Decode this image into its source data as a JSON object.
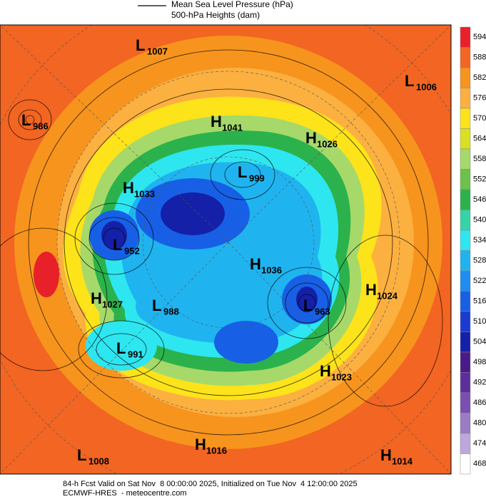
{
  "legend": {
    "line_label": "Mean Sea Level Pressure (hPa)",
    "fill_label": "500-hPa Heights (dam)"
  },
  "colorbar": [
    {
      "value": 594,
      "color": "#e8202a"
    },
    {
      "value": 588,
      "color": "#f26522"
    },
    {
      "value": 582,
      "color": "#f7941d"
    },
    {
      "value": 576,
      "color": "#fbb040"
    },
    {
      "value": 570,
      "color": "#fde31a"
    },
    {
      "value": 564,
      "color": "#d9e021"
    },
    {
      "value": 558,
      "color": "#a6d96a"
    },
    {
      "value": 552,
      "color": "#6cc24a"
    },
    {
      "value": 546,
      "color": "#2bb24c"
    },
    {
      "value": 540,
      "color": "#35d4a8"
    },
    {
      "value": 534,
      "color": "#2ee6f0"
    },
    {
      "value": 528,
      "color": "#1fb4f0"
    },
    {
      "value": 522,
      "color": "#1e8cf0"
    },
    {
      "value": 516,
      "color": "#1760e6"
    },
    {
      "value": 510,
      "color": "#1a3ad2"
    },
    {
      "value": 504,
      "color": "#1420a8"
    },
    {
      "value": 498,
      "color": "#4a1a8a"
    },
    {
      "value": 492,
      "color": "#5e2d9c"
    },
    {
      "value": 486,
      "color": "#7a4faf"
    },
    {
      "value": 480,
      "color": "#9a7cc4"
    },
    {
      "value": 474,
      "color": "#bda7dc"
    },
    {
      "value": 468,
      "color": "#ffffff"
    }
  ],
  "centers": [
    {
      "letter": "L",
      "value": 1007
    },
    {
      "letter": "L",
      "value": 1006
    },
    {
      "letter": "L",
      "value": 986
    },
    {
      "letter": "H",
      "value": 1041
    },
    {
      "letter": "H",
      "value": 1026
    },
    {
      "letter": "L",
      "value": 999
    },
    {
      "letter": "H",
      "value": 1033
    },
    {
      "letter": "L",
      "value": 952
    },
    {
      "letter": "H",
      "value": 1036
    },
    {
      "letter": "H",
      "value": 1027
    },
    {
      "letter": "L",
      "value": 988
    },
    {
      "letter": "L",
      "value": 963
    },
    {
      "letter": "H",
      "value": 1024
    },
    {
      "letter": "L",
      "value": 991
    },
    {
      "letter": "H",
      "value": 1023
    },
    {
      "letter": "L",
      "value": 1008
    },
    {
      "letter": "H",
      "value": 1016
    },
    {
      "letter": "H",
      "value": 1014
    }
  ],
  "footer": {
    "line1": "84-h Fcst Valid on Sat Nov  8 00:00:00 2025, Initialized on Tue Nov  4 12:00:00 2025",
    "line2": "ECMWF-HRES  - meteocentre.com"
  }
}
